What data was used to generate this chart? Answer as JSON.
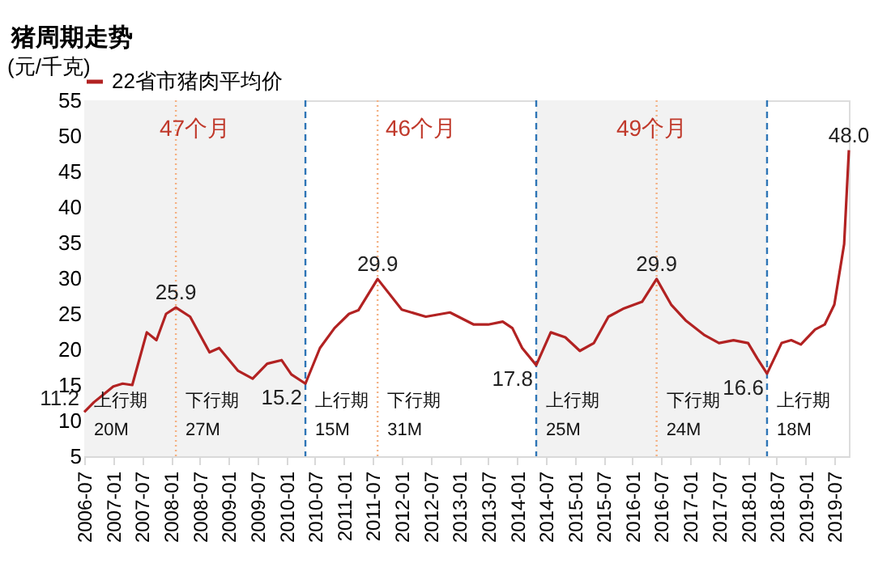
{
  "chart_data": {
    "type": "line",
    "title": "猪周期走势",
    "ylabel": "(元/千克)",
    "x": [
      "2006-07",
      "2006-09",
      "2006-11",
      "2007-01",
      "2007-03",
      "2007-05",
      "2007-08",
      "2007-10",
      "2007-12",
      "2008-02",
      "2008-05",
      "2008-09",
      "2008-11",
      "2009-03",
      "2009-06",
      "2009-09",
      "2009-12",
      "2010-02",
      "2010-05",
      "2010-08",
      "2010-11",
      "2011-02",
      "2011-04",
      "2011-08",
      "2012-01",
      "2012-06",
      "2012-11",
      "2013-04",
      "2013-07",
      "2013-10",
      "2013-12",
      "2014-02",
      "2014-05",
      "2014-08",
      "2014-11",
      "2015-02",
      "2015-05",
      "2015-08",
      "2015-11",
      "2016-03",
      "2016-06",
      "2016-09",
      "2016-12",
      "2017-04",
      "2017-07",
      "2017-10",
      "2018-01",
      "2018-03",
      "2018-05",
      "2018-08",
      "2018-10",
      "2018-12",
      "2019-03",
      "2019-05",
      "2019-07",
      "2019-09",
      "2019-10"
    ],
    "series": [
      {
        "name": "22省市猪肉平均价",
        "color": "#b22222",
        "values": [
          11.2,
          12.6,
          13.7,
          14.8,
          15.2,
          15.0,
          22.4,
          21.3,
          25.0,
          25.9,
          24.6,
          19.6,
          20.2,
          17.0,
          15.9,
          18.0,
          18.5,
          16.5,
          15.2,
          20.2,
          23.0,
          25.0,
          25.5,
          29.9,
          25.6,
          24.6,
          25.2,
          23.5,
          23.5,
          23.9,
          23.0,
          20.2,
          17.8,
          22.4,
          21.7,
          19.8,
          20.9,
          24.6,
          25.7,
          26.7,
          29.9,
          26.3,
          24.1,
          22.0,
          20.9,
          21.3,
          20.9,
          18.7,
          16.6,
          20.9,
          21.3,
          20.7,
          22.8,
          23.5,
          26.3,
          34.8,
          48.0
        ]
      }
    ],
    "xlim": [
      "2006-07",
      "2019-10"
    ],
    "xticks": [
      "2006-07",
      "2007-01",
      "2007-07",
      "2008-01",
      "2008-07",
      "2009-01",
      "2009-07",
      "2010-01",
      "2010-07",
      "2011-01",
      "2011-07",
      "2012-01",
      "2012-07",
      "2013-01",
      "2013-07",
      "2014-01",
      "2014-07",
      "2015-01",
      "2015-07",
      "2016-01",
      "2016-07",
      "2017-01",
      "2017-07",
      "2018-01",
      "2018-07",
      "2019-01",
      "2019-07"
    ],
    "ylim": [
      5,
      55
    ],
    "yticks": [
      5,
      10,
      15,
      20,
      25,
      30,
      35,
      40,
      45,
      50,
      55
    ],
    "legend": "top",
    "grid": false,
    "line_style": "solid",
    "marker": "none",
    "bands": [
      {
        "axis": "x",
        "from": "2006-07",
        "to": "2010-05",
        "color": "#f2f2f2"
      },
      {
        "axis": "x",
        "from": "2014-05",
        "to": "2018-05",
        "color": "#f2f2f2"
      }
    ],
    "ref_lines": [
      {
        "axis": "x",
        "value": "2010-05",
        "color": "#2e75b6",
        "line_style": "dashed"
      },
      {
        "axis": "x",
        "value": "2014-05",
        "color": "#2e75b6",
        "line_style": "dashed"
      },
      {
        "axis": "x",
        "value": "2018-05",
        "color": "#2e75b6",
        "line_style": "dashed"
      },
      {
        "axis": "x",
        "value": "2008-02",
        "color": "#f4b183",
        "line_style": "dotted"
      },
      {
        "axis": "x",
        "value": "2011-08",
        "color": "#f4b183",
        "line_style": "dotted"
      },
      {
        "axis": "x",
        "value": "2016-06",
        "color": "#f4b183",
        "line_style": "dotted"
      }
    ],
    "annotations": [
      {
        "text": "48.0",
        "x": "2019-10",
        "y": 48.0
      },
      {
        "text": "25.9",
        "x": "2008-02",
        "y": 25.9
      },
      {
        "text": "29.9",
        "x": "2011-08",
        "y": 29.9
      },
      {
        "text": "29.9",
        "x": "2016-06",
        "y": 29.9
      },
      {
        "text": "11.2",
        "x": "2006-07",
        "y": 11.2
      },
      {
        "text": "15.2",
        "x": "2010-05",
        "y": 15.2
      },
      {
        "text": "17.8",
        "x": "2014-05",
        "y": 17.8
      },
      {
        "text": "16.6",
        "x": "2018-05",
        "y": 16.6
      },
      "47个月",
      "46个月",
      "49个月",
      "上行期",
      "20M",
      "下行期",
      "27M",
      "上行期",
      "15M",
      "下行期",
      "31M",
      "上行期",
      "25M",
      "下行期",
      "24M",
      "上行期",
      "18M"
    ]
  }
}
